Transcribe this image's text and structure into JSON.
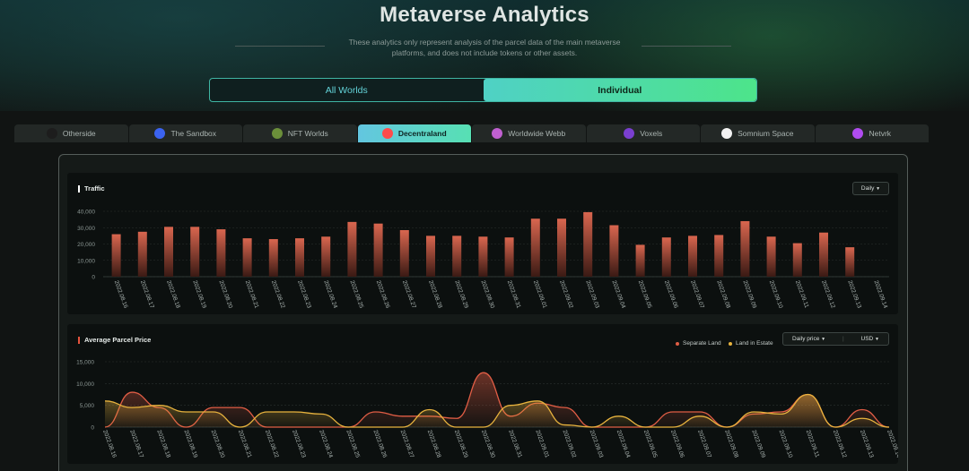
{
  "header": {
    "title": "Metaverse Analytics",
    "subtitle": "These analytics only represent analysis of the parcel data of the main metaverse platforms, and does not include tokens or other assets."
  },
  "toggle": {
    "all_worlds": "All Worlds",
    "individual": "Individual",
    "selected": "Individual"
  },
  "tabs": [
    {
      "label": "Otherside",
      "icon": "otherside-icon",
      "color": "#1d1d1d"
    },
    {
      "label": "The Sandbox",
      "icon": "sandbox-icon",
      "color": "#3b63f0"
    },
    {
      "label": "NFT Worlds",
      "icon": "nft-worlds-icon",
      "color": "#6b8f3a"
    },
    {
      "label": "Decentraland",
      "icon": "decentraland-icon",
      "color": "#ff4b4b",
      "active": true
    },
    {
      "label": "Worldwide Webb",
      "icon": "worldwide-webb-icon",
      "color": "#c060d0"
    },
    {
      "label": "Voxels",
      "icon": "voxels-icon",
      "color": "#7a3fd0"
    },
    {
      "label": "Somnium Space",
      "icon": "somnium-space-icon",
      "color": "#f2f2f2"
    },
    {
      "label": "Netvrk",
      "icon": "netvrk-icon",
      "color": "#b04cf0"
    }
  ],
  "traffic": {
    "title": "Traffic",
    "period": "Daily",
    "chart_data": {
      "type": "bar",
      "categories": [
        "2022.08.16",
        "2022.08.17",
        "2022.08.18",
        "2022.08.19",
        "2022.08.20",
        "2022.08.21",
        "2022.08.22",
        "2022.08.23",
        "2022.08.24",
        "2022.08.25",
        "2022.08.26",
        "2022.08.27",
        "2022.08.28",
        "2022.08.29",
        "2022.08.30",
        "2022.08.31",
        "2022.09.01",
        "2022.09.02",
        "2022.09.03",
        "2022.09.04",
        "2022.09.05",
        "2022.09.06",
        "2022.09.07",
        "2022.09.08",
        "2022.09.09",
        "2022.09.10",
        "2022.09.11",
        "2022.09.12",
        "2022.09.13",
        "2022.09.14"
      ],
      "values": [
        26000,
        27500,
        30500,
        30500,
        29000,
        23500,
        23000,
        23500,
        24500,
        33500,
        32500,
        28500,
        25000,
        25000,
        24500,
        24000,
        35500,
        35500,
        39500,
        31500,
        19500,
        24000,
        25000,
        25500,
        34000,
        24500,
        20500,
        27000,
        18000,
        null
      ],
      "yticks": [
        "0",
        "10,000",
        "20,000",
        "30,000",
        "40,000"
      ],
      "ylim": [
        0,
        40000
      ],
      "bar_color_top": "#d9664f",
      "bar_color_bottom": "#3a1a14"
    }
  },
  "parcel": {
    "title": "Average Parcel Price",
    "price_mode": "Daily price",
    "currency": "USD",
    "legend": [
      {
        "label": "Separate Land",
        "color": "#e05d45"
      },
      {
        "label": "Land in Estate",
        "color": "#e8b33e"
      }
    ],
    "chart_data": {
      "type": "area",
      "categories": [
        "2022.08.16",
        "2022.08.17",
        "2022.08.18",
        "2022.08.19",
        "2022.08.20",
        "2022.08.21",
        "2022.08.22",
        "2022.08.23",
        "2022.08.24",
        "2022.08.25",
        "2022.08.26",
        "2022.08.27",
        "2022.08.28",
        "2022.08.29",
        "2022.08.30",
        "2022.08.31",
        "2022.09.01",
        "2022.09.02",
        "2022.09.03",
        "2022.09.04",
        "2022.09.05",
        "2022.09.06",
        "2022.09.07",
        "2022.09.08",
        "2022.09.09",
        "2022.09.10",
        "2022.09.11",
        "2022.09.12",
        "2022.09.13",
        "2022.09.14"
      ],
      "series": [
        {
          "name": "Separate Land",
          "color": "#e05d45",
          "values": [
            0,
            8000,
            4500,
            0,
            4500,
            4500,
            0,
            0,
            0,
            0,
            3500,
            2500,
            2500,
            2000,
            12500,
            2500,
            5500,
            4500,
            0,
            0,
            0,
            3500,
            3500,
            0,
            3000,
            3500,
            7500,
            0,
            4000,
            0
          ]
        },
        {
          "name": "Land in Estate",
          "color": "#e8b33e",
          "values": [
            6000,
            4500,
            5000,
            3500,
            3500,
            0,
            3500,
            3500,
            3000,
            0,
            0,
            0,
            4000,
            0,
            0,
            5000,
            6000,
            500,
            0,
            2500,
            0,
            0,
            2500,
            0,
            3500,
            3000,
            7500,
            0,
            2000,
            0
          ]
        }
      ],
      "yticks": [
        "0",
        "5,000",
        "10,000",
        "15,000"
      ],
      "ylim": [
        0,
        15000
      ]
    }
  }
}
